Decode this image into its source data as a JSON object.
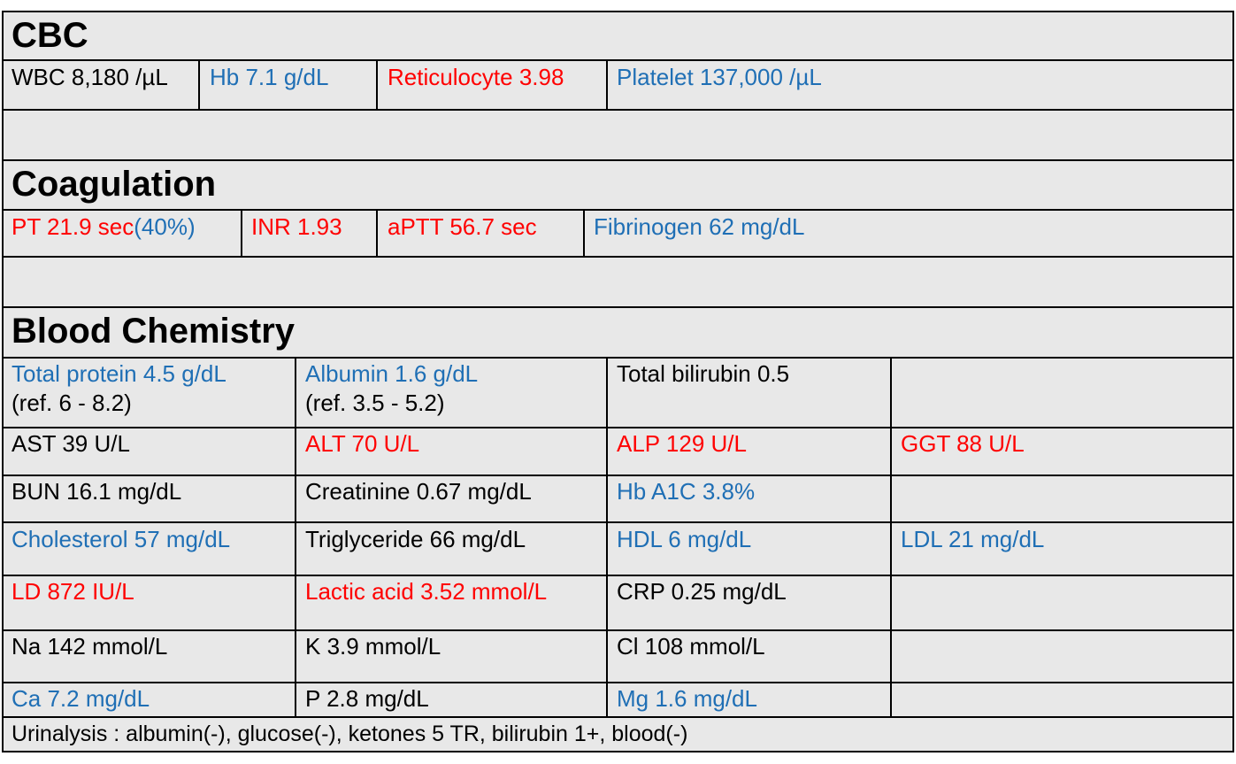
{
  "colors": {
    "normal": "#000000",
    "low": "#1f6fb5",
    "high": "#ff0000",
    "background": "#e8e8e8"
  },
  "cbc": {
    "title": "CBC",
    "wbc": "WBC 8,180 /µL",
    "hb": "Hb 7.1 g/dL",
    "reticulocyte": "Reticulocyte 3.98",
    "platelet": "Platelet 137,000 /µL"
  },
  "coagulation": {
    "title": "Coagulation",
    "pt": "PT 21.9 sec",
    "pt_percent": "(40%)",
    "inr": "INR 1.93",
    "aptt": "aPTT 56.7 sec",
    "fibrinogen": "Fibrinogen 62 mg/dL"
  },
  "chemistry": {
    "title": "Blood Chemistry",
    "total_protein": "Total protein 4.5 g/dL",
    "total_protein_ref": "(ref. 6 - 8.2)",
    "albumin": "Albumin 1.6 g/dL",
    "albumin_ref": "(ref. 3.5 - 5.2)",
    "total_bilirubin": "Total bilirubin 0.5",
    "ast": "AST 39 U/L",
    "alt": "ALT 70 U/L",
    "alp": "ALP 129 U/L",
    "ggt": "GGT 88 U/L",
    "bun": "BUN 16.1 mg/dL",
    "creatinine": "Creatinine 0.67 mg/dL",
    "hba1c": "Hb A1C 3.8%",
    "cholesterol": "Cholesterol 57 mg/dL",
    "triglyceride": "Triglyceride 66 mg/dL",
    "hdl": "HDL 6 mg/dL",
    "ldl": "LDL 21 mg/dL",
    "ld": "LD 872 IU/L",
    "lactic_acid": "Lactic acid 3.52 mmol/L",
    "crp": "CRP 0.25 mg/dL",
    "na": "Na 142 mmol/L",
    "k": "K 3.9 mmol/L",
    "cl": "Cl 108 mmol/L",
    "ca": "Ca 7.2 mg/dL",
    "p": "P 2.8 mg/dL",
    "mg": "Mg 1.6 mg/dL"
  },
  "urinalysis": "Urinalysis : albumin(-), glucose(-), ketones 5 TR, bilirubin 1+, blood(-)"
}
